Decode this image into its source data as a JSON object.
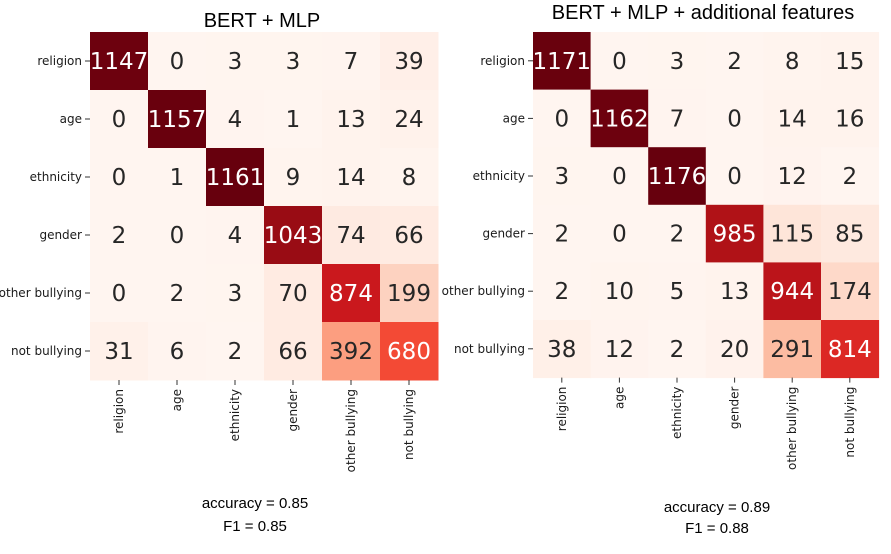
{
  "chart_data": [
    {
      "type": "heatmap",
      "title": "BERT + MLP",
      "rows": [
        "religion",
        "age",
        "ethnicity",
        "gender",
        "other bullying",
        "not bullying"
      ],
      "columns": [
        "religion",
        "age",
        "ethnicity",
        "gender",
        "other bullying",
        "not bullying"
      ],
      "values": [
        [
          1147,
          0,
          3,
          3,
          7,
          39
        ],
        [
          0,
          1157,
          4,
          1,
          13,
          24
        ],
        [
          0,
          1,
          1161,
          9,
          14,
          8
        ],
        [
          2,
          0,
          4,
          1043,
          74,
          66
        ],
        [
          0,
          2,
          3,
          70,
          874,
          199
        ],
        [
          31,
          6,
          2,
          66,
          392,
          680
        ]
      ],
      "colormap": "Reds",
      "metrics": [
        "accuracy = 0.85",
        "F1 = 0.85"
      ]
    },
    {
      "type": "heatmap",
      "title": "BERT + MLP + additional features",
      "rows": [
        "religion",
        "age",
        "ethnicity",
        "gender",
        "other bullying",
        "not bullying"
      ],
      "columns": [
        "religion",
        "age",
        "ethnicity",
        "gender",
        "other bullying",
        "not bullying"
      ],
      "values": [
        [
          1171,
          0,
          3,
          2,
          8,
          15
        ],
        [
          0,
          1162,
          7,
          0,
          14,
          16
        ],
        [
          3,
          0,
          1176,
          0,
          12,
          2
        ],
        [
          2,
          0,
          2,
          985,
          115,
          85
        ],
        [
          2,
          10,
          5,
          13,
          944,
          174
        ],
        [
          38,
          12,
          2,
          20,
          291,
          814
        ]
      ],
      "colormap": "Reds",
      "metrics": [
        "accuracy = 0.89",
        "F1 = 0.88"
      ]
    }
  ]
}
